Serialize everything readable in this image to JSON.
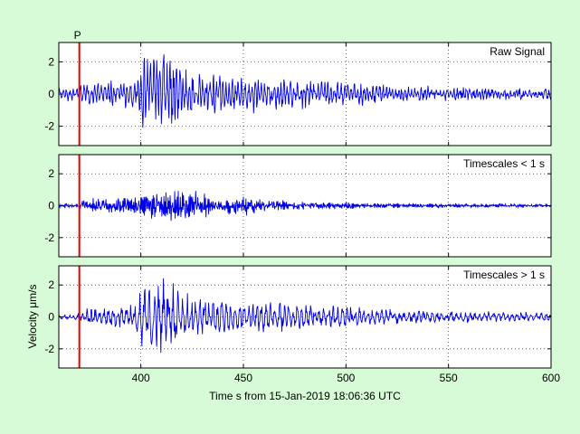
{
  "figure": {
    "background": "#d6fbd6",
    "axes_background": "#ffffff",
    "trace_color": "#0000e6",
    "pick_color": "#e60000",
    "grid": true,
    "grid_style": "dotted",
    "xlabel": "Time s from 15-Jan-2019 18:06:36 UTC",
    "ylabel": "Velocity μm/s"
  },
  "chart_data": [
    {
      "type": "line",
      "title": "Raw Signal",
      "xlim": [
        360,
        600
      ],
      "ylim": [
        -3.2,
        3.2
      ],
      "yticks": [
        -2,
        0,
        2
      ],
      "xticks": [
        400,
        450,
        500,
        550,
        600
      ],
      "show_xtick_labels": false,
      "pick": {
        "label": "P",
        "x": 370
      },
      "series": [
        {
          "sampling": "deterministic pseudo-random noise modulated by envelope",
          "noise_amp": 0.15,
          "seed": 11,
          "dt": 0.25,
          "envelope": [
            [
              360,
              0.35
            ],
            [
              370,
              0.4
            ],
            [
              372,
              0.75
            ],
            [
              385,
              0.8
            ],
            [
              398,
              1.1
            ],
            [
              401,
              2.5
            ],
            [
              407,
              2.6
            ],
            [
              411,
              3.0
            ],
            [
              416,
              2.3
            ],
            [
              422,
              1.7
            ],
            [
              428,
              1.4
            ],
            [
              440,
              1.2
            ],
            [
              455,
              1.15
            ],
            [
              470,
              1.0
            ],
            [
              485,
              0.8
            ],
            [
              500,
              0.75
            ],
            [
              515,
              0.55
            ],
            [
              530,
              0.45
            ],
            [
              550,
              0.38
            ],
            [
              570,
              0.3
            ],
            [
              600,
              0.28
            ]
          ],
          "period_s": 1.6
        }
      ]
    },
    {
      "type": "line",
      "title": "Timescales < 1 s",
      "xlim": [
        360,
        600
      ],
      "ylim": [
        -3.2,
        3.2
      ],
      "yticks": [
        -2,
        0,
        2
      ],
      "xticks": [
        400,
        450,
        500,
        550,
        600
      ],
      "show_xtick_labels": false,
      "pick": {
        "label": "",
        "x": 370
      },
      "series": [
        {
          "sampling": "deterministic pseudo-random noise modulated by envelope",
          "noise_amp": 0.06,
          "seed": 29,
          "dt": 0.25,
          "envelope": [
            [
              360,
              0.1
            ],
            [
              370,
              0.1
            ],
            [
              372,
              0.45
            ],
            [
              385,
              0.5
            ],
            [
              398,
              0.6
            ],
            [
              401,
              0.8
            ],
            [
              410,
              0.85
            ],
            [
              418,
              1.0
            ],
            [
              424,
              1.2
            ],
            [
              428,
              0.9
            ],
            [
              435,
              0.6
            ],
            [
              445,
              0.55
            ],
            [
              452,
              0.6
            ],
            [
              460,
              0.4
            ],
            [
              480,
              0.25
            ],
            [
              500,
              0.22
            ],
            [
              520,
              0.15
            ],
            [
              550,
              0.1
            ],
            [
              600,
              0.08
            ]
          ],
          "period_s": 0.5
        }
      ]
    },
    {
      "type": "line",
      "title": "Timescales > 1 s",
      "xlim": [
        360,
        600
      ],
      "ylim": [
        -3.2,
        3.2
      ],
      "yticks": [
        -2,
        0,
        2
      ],
      "xticks": [
        400,
        450,
        500,
        550,
        600
      ],
      "show_xtick_labels": true,
      "pick": {
        "label": "",
        "x": 370
      },
      "series": [
        {
          "sampling": "deterministic pseudo-random noise modulated by envelope",
          "noise_amp": 0.08,
          "seed": 53,
          "dt": 0.25,
          "envelope": [
            [
              360,
              0.15
            ],
            [
              370,
              0.2
            ],
            [
              372,
              0.5
            ],
            [
              385,
              0.7
            ],
            [
              398,
              1.0
            ],
            [
              401,
              2.3
            ],
            [
              407,
              2.4
            ],
            [
              411,
              2.8
            ],
            [
              416,
              2.2
            ],
            [
              422,
              1.7
            ],
            [
              428,
              1.3
            ],
            [
              440,
              1.1
            ],
            [
              455,
              1.0
            ],
            [
              470,
              0.95
            ],
            [
              485,
              0.75
            ],
            [
              500,
              0.7
            ],
            [
              515,
              0.5
            ],
            [
              530,
              0.4
            ],
            [
              550,
              0.35
            ],
            [
              570,
              0.28
            ],
            [
              600,
              0.25
            ]
          ],
          "period_s": 2.2
        }
      ]
    }
  ]
}
